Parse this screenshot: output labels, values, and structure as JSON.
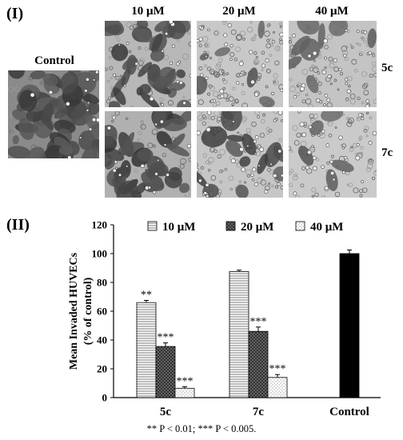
{
  "panel_i_label": "(I)",
  "panel_ii_label": "(II)",
  "micrographs": {
    "control_label": "Control",
    "columns": [
      "10 μM",
      "20 μM",
      "40 μM"
    ],
    "rows": [
      "5c",
      "7c"
    ]
  },
  "footnote": "** P < 0.01; *** P < 0.005.",
  "chart_data": {
    "type": "bar",
    "categories": [
      "5c",
      "7c",
      "Control"
    ],
    "series": [
      {
        "name": "10 μM",
        "pattern": "horizontal-lines",
        "values": [
          66,
          87.5,
          null
        ],
        "errors": [
          1.5,
          1,
          null
        ],
        "annotations": [
          "**",
          "",
          ""
        ]
      },
      {
        "name": "20 μM",
        "pattern": "crosshatch-dark",
        "values": [
          35.5,
          46,
          null
        ],
        "errors": [
          2.5,
          3,
          null
        ],
        "annotations": [
          "***",
          "***",
          ""
        ]
      },
      {
        "name": "40 μM",
        "pattern": "sparse-dots",
        "values": [
          6.5,
          14,
          null
        ],
        "errors": [
          1,
          2,
          null
        ],
        "annotations": [
          "***",
          "***",
          ""
        ]
      },
      {
        "name": "",
        "pattern": "solid-black",
        "values": [
          null,
          null,
          100
        ],
        "errors": [
          null,
          null,
          2.5
        ],
        "annotations": [
          "",
          "",
          ""
        ]
      }
    ],
    "xlabel": "",
    "ylabel": "Mean Invaded HUVECs",
    "ylabel2": "(% of control)",
    "ylim": [
      0,
      120
    ],
    "yticks": [
      0,
      20,
      40,
      60,
      80,
      100,
      120
    ],
    "grid": false,
    "legend": "top"
  }
}
